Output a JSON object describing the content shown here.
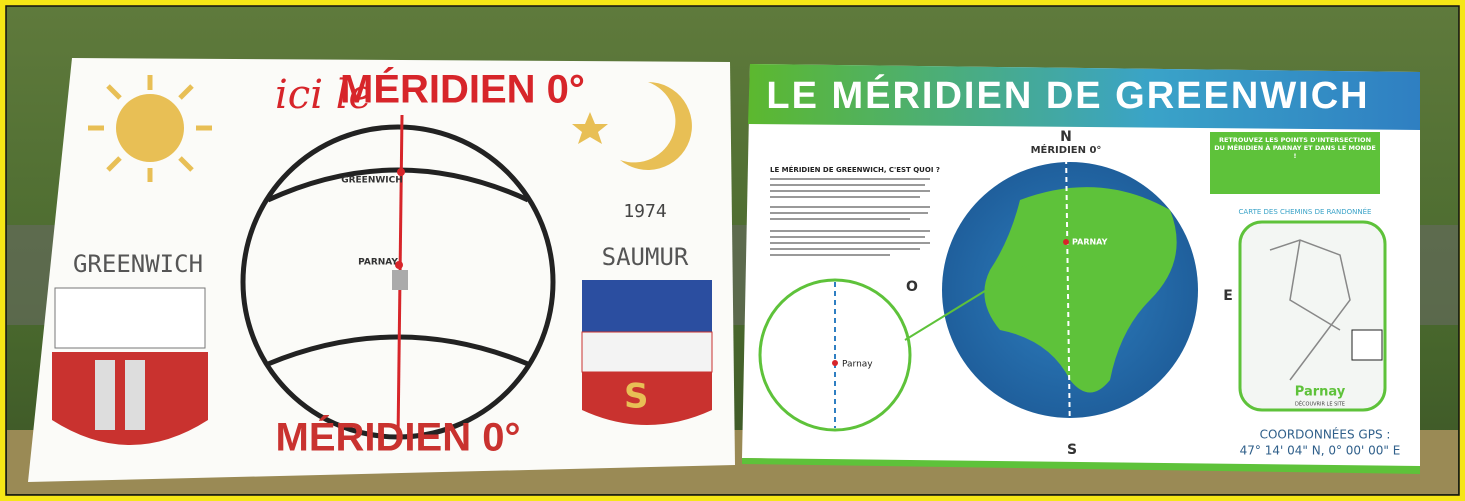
{
  "left_sign": {
    "heading_script": "ici le",
    "heading": "MÉRIDIEN 0°",
    "globe_top_label": "GREENWICH",
    "globe_mid_label": "PARNAY",
    "year": "1974",
    "left_town": "GREENWICH",
    "right_town": "SAUMUR",
    "footer": "MÉRIDIEN 0°"
  },
  "right_sign": {
    "title": "LE MÉRIDIEN DE GREENWICH",
    "compass_n": "N",
    "meridian_label": "MÉRIDIEN 0°",
    "compass_o": "O",
    "compass_e": "E",
    "compass_s": "S",
    "question": "LE MÉRIDIEN DE GREENWICH, C'EST QUOI ?",
    "map_parnay": "PARNAY",
    "inset_parnay": "Parnay",
    "box_title": "RETROUVEZ LES POINTS D'INTERSECTION DU MÉRIDIEN À PARNAY ET DANS LE MONDE !",
    "trail_map_title": "CARTE DES CHEMINS DE RANDONNÉE",
    "brand": "Parnay",
    "brand_link": "DÉCOUVRIR LE SITE",
    "gps_label": "COORDONNÉES GPS :",
    "gps_value": "47° 14' 04\" N, 0° 00' 00\" E"
  }
}
